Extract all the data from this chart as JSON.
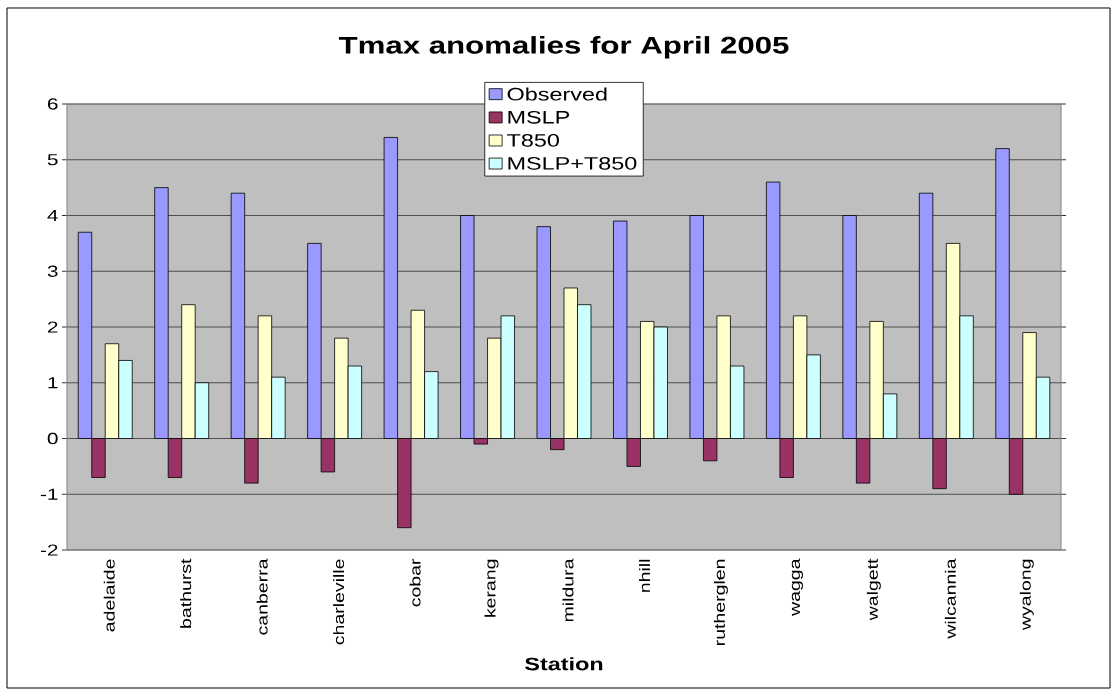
{
  "chart_data": {
    "type": "bar",
    "title": "Tmax anomalies for April 2005",
    "xlabel": "Station",
    "categories": [
      "adelaide",
      "bathurst",
      "canberra",
      "charleville",
      "cobar",
      "kerang",
      "mildura",
      "nhill",
      "rutherglen",
      "wagga",
      "walgett",
      "wilcannia",
      "wyalong"
    ],
    "series": [
      {
        "name": "Observed",
        "color": "#9999ff",
        "values": [
          3.7,
          4.5,
          4.4,
          3.5,
          5.4,
          4.0,
          3.8,
          3.9,
          4.0,
          4.6,
          4.0,
          4.4,
          5.2
        ]
      },
      {
        "name": "MSLP",
        "color": "#993366",
        "values": [
          -0.7,
          -0.7,
          -0.8,
          -0.6,
          -1.6,
          -0.1,
          -0.2,
          -0.5,
          -0.4,
          -0.7,
          -0.8,
          -0.9,
          -1.0
        ]
      },
      {
        "name": "T850",
        "color": "#ffffcc",
        "values": [
          1.7,
          2.4,
          2.2,
          1.8,
          2.3,
          1.8,
          2.7,
          2.1,
          2.2,
          2.2,
          2.1,
          3.5,
          1.9
        ]
      },
      {
        "name": "MSLP+T850",
        "color": "#ccffff",
        "values": [
          1.4,
          1.0,
          1.1,
          1.3,
          1.2,
          2.2,
          2.4,
          2.0,
          1.3,
          1.5,
          0.8,
          2.2,
          1.1
        ]
      }
    ],
    "ylim": [
      -2,
      6
    ],
    "yticks": [
      -2,
      -1,
      0,
      1,
      2,
      3,
      4,
      5,
      6
    ],
    "grid": "y",
    "legend": "top"
  }
}
